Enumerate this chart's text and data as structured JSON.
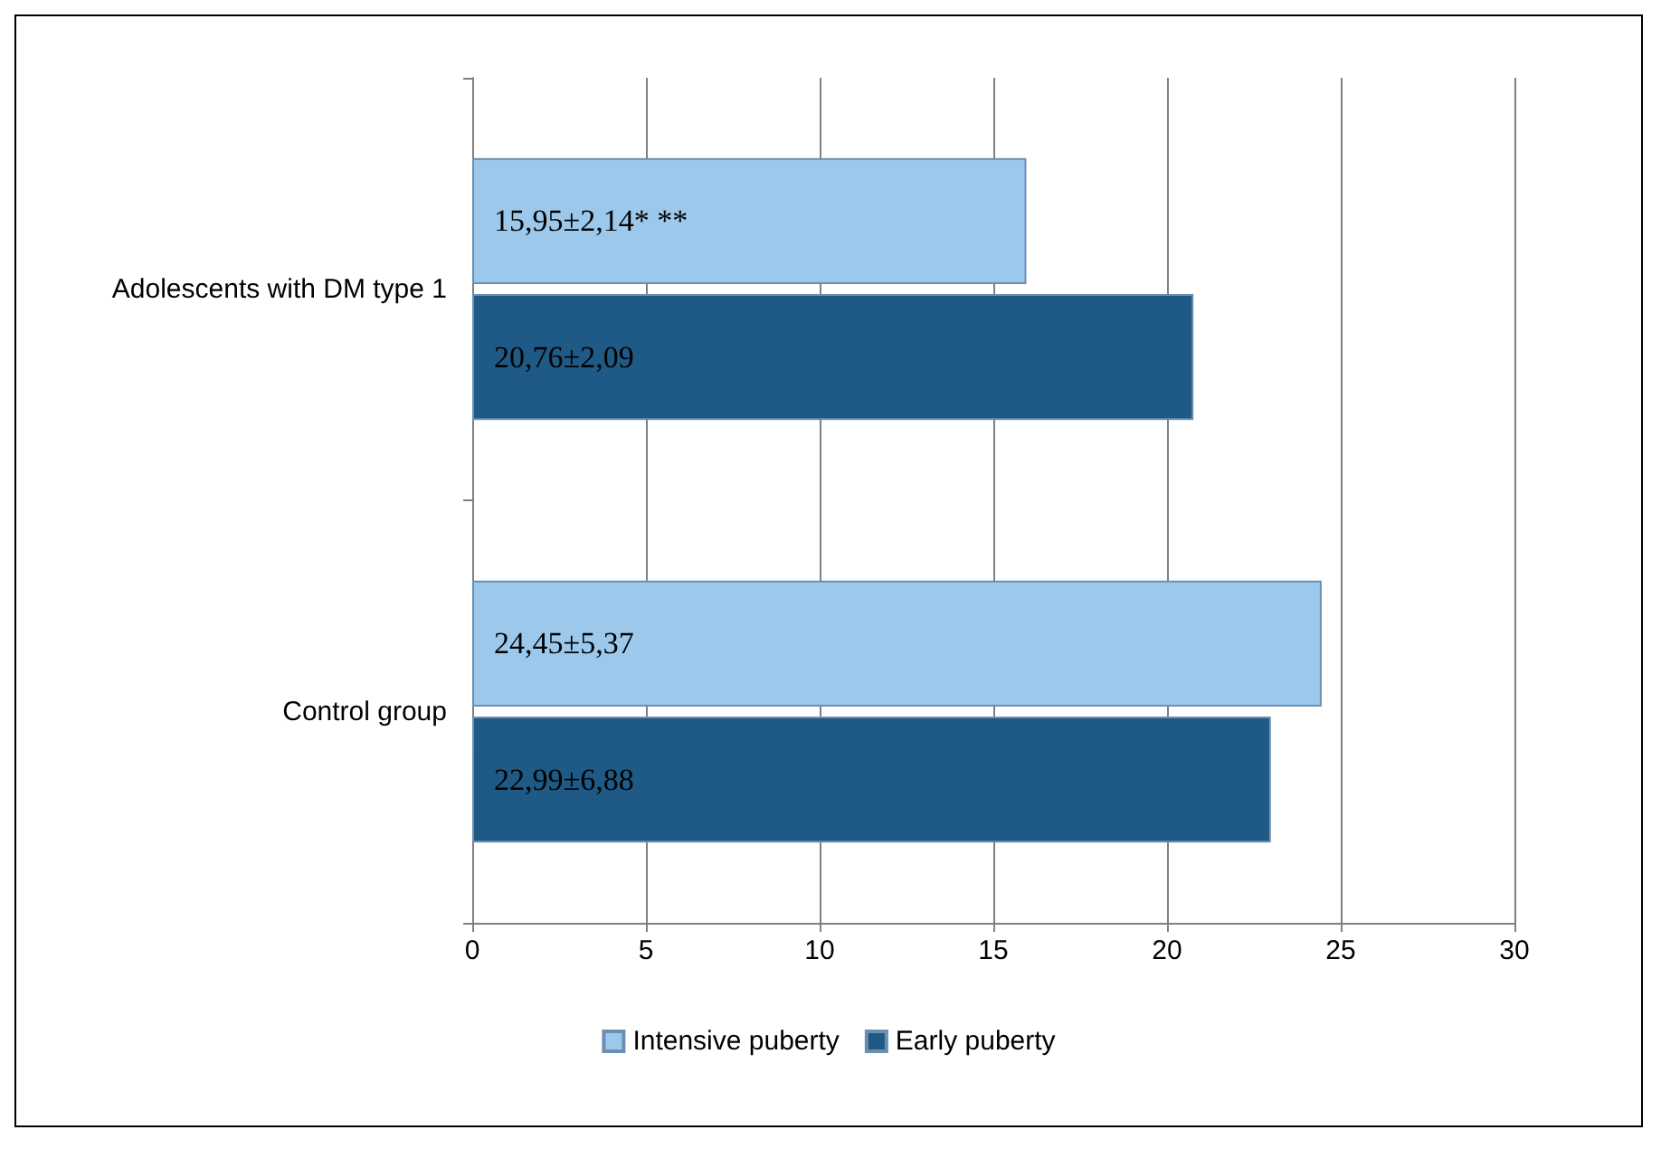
{
  "chart_data": {
    "type": "bar",
    "orientation": "horizontal",
    "categories": [
      "Adolescents with DM type 1",
      "Control group"
    ],
    "series": [
      {
        "name": "Intensive puberty",
        "color": "#9cc8ec",
        "values": [
          15.95,
          24.45
        ],
        "value_labels": [
          "15,95±2,14* **",
          "24,45±5,37"
        ]
      },
      {
        "name": "Early puberty",
        "color": "#1f5a86",
        "values": [
          20.76,
          22.99
        ],
        "value_labels": [
          "20,76±2,09",
          "22,99±6,88"
        ]
      }
    ],
    "xlim": [
      0,
      30
    ],
    "xticks": [
      0,
      5,
      10,
      15,
      20,
      25,
      30
    ],
    "grid": "x",
    "legend": "bottom"
  }
}
